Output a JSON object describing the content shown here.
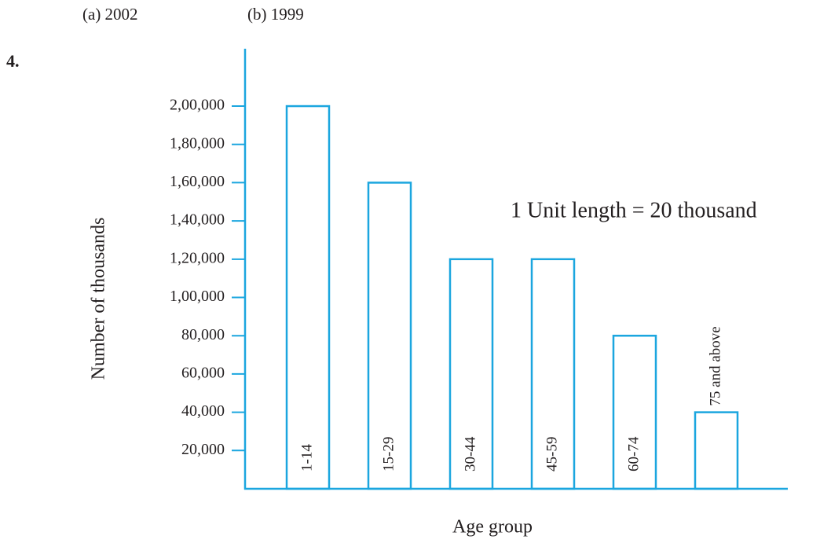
{
  "header": {
    "option_a": "(a)  2002",
    "option_b": "(b)  1999",
    "question_number": "4."
  },
  "chart_data": {
    "type": "bar",
    "categories": [
      "1-14",
      "15-29",
      "30-44",
      "45-59",
      "60-74",
      "75 and above"
    ],
    "values": [
      200000,
      160000,
      120000,
      120000,
      80000,
      40000
    ],
    "color": "#1ba6df",
    "y_label": "Number of thousands",
    "x_label": "Age group",
    "annotation": "1 Unit length = 20 thousand",
    "ylim": [
      0,
      230000
    ],
    "yticks": [
      {
        "value": 20000,
        "label": "20,000"
      },
      {
        "value": 40000,
        "label": "40,000"
      },
      {
        "value": 60000,
        "label": "60,000"
      },
      {
        "value": 80000,
        "label": "80,000"
      },
      {
        "value": 100000,
        "label": "1,00,000"
      },
      {
        "value": 120000,
        "label": "1,20,000"
      },
      {
        "value": 140000,
        "label": "1,40,000"
      },
      {
        "value": 160000,
        "label": "1,60,000"
      },
      {
        "value": 180000,
        "label": "1,80,000"
      },
      {
        "value": 200000,
        "label": "2,00,000"
      }
    ],
    "grid": false
  }
}
